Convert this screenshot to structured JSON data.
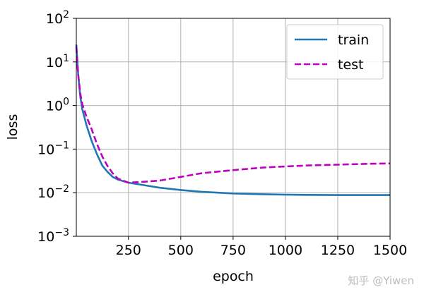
{
  "chart_data": {
    "type": "line",
    "xlabel": "epoch",
    "ylabel": "loss",
    "yscale": "log",
    "xlim": [
      1,
      1500
    ],
    "ylim": [
      0.001,
      100
    ],
    "grid": true,
    "legend_position": "top-right",
    "xticks": [
      "250",
      "500",
      "750",
      "1000",
      "1250",
      "1500"
    ],
    "xtick_values": [
      250,
      500,
      750,
      1000,
      1250,
      1500
    ],
    "yticks": [
      {
        "base": "10",
        "exp": "2"
      },
      {
        "base": "10",
        "exp": "1"
      },
      {
        "base": "10",
        "exp": "0"
      },
      {
        "base": "10",
        "exp": "−1"
      },
      {
        "base": "10",
        "exp": "−2"
      },
      {
        "base": "10",
        "exp": "−3"
      }
    ],
    "ytick_values": [
      100,
      10,
      1,
      0.1,
      0.01,
      0.001
    ],
    "series": [
      {
        "name": "train",
        "color": "#1f77b4",
        "style": "solid",
        "x": [
          1,
          10,
          20,
          30,
          50,
          75,
          100,
          125,
          150,
          175,
          200,
          250,
          300,
          400,
          500,
          600,
          750,
          900,
          1000,
          1100,
          1250,
          1400,
          1500
        ],
        "y": [
          25,
          5,
          1.6,
          0.8,
          0.35,
          0.15,
          0.076,
          0.042,
          0.03,
          0.023,
          0.02,
          0.017,
          0.0155,
          0.013,
          0.0115,
          0.0105,
          0.0096,
          0.0092,
          0.009,
          0.0089,
          0.0088,
          0.0088,
          0.0088
        ]
      },
      {
        "name": "test",
        "color": "#bf00bf",
        "style": "dashed",
        "x": [
          1,
          10,
          20,
          30,
          50,
          75,
          100,
          125,
          150,
          175,
          200,
          250,
          300,
          400,
          500,
          600,
          750,
          900,
          1000,
          1100,
          1250,
          1400,
          1500
        ],
        "y": [
          22,
          5,
          1.9,
          1.05,
          0.55,
          0.28,
          0.13,
          0.068,
          0.041,
          0.028,
          0.021,
          0.017,
          0.0175,
          0.019,
          0.023,
          0.028,
          0.033,
          0.038,
          0.04,
          0.042,
          0.044,
          0.046,
          0.047
        ]
      }
    ]
  },
  "watermark": "知乎 @Yiwen"
}
